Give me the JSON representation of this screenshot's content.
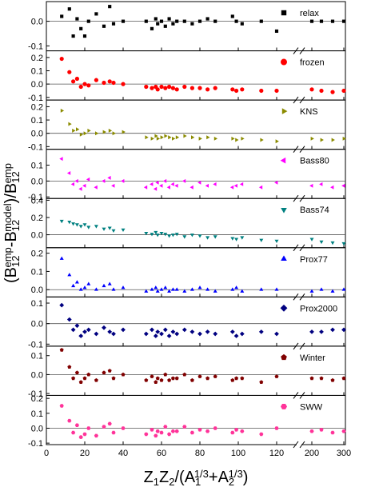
{
  "x_axis": {
    "x": [
      8,
      12,
      14,
      16,
      18,
      20,
      22,
      26,
      30,
      33,
      35,
      40,
      52,
      55,
      57,
      58,
      60,
      62,
      64,
      66,
      68,
      72,
      76,
      80,
      84,
      88,
      97,
      99,
      102,
      112,
      120,
      200,
      230,
      265,
      300
    ],
    "xlim": [
      0,
      305
    ],
    "xbreak": [
      130,
      170
    ],
    "xticks": [
      0,
      20,
      40,
      60,
      80,
      100,
      120,
      200,
      300
    ]
  },
  "xlabel": [
    {
      "t": "Z",
      "pos": "base"
    },
    {
      "t": "1",
      "pos": "sub"
    },
    {
      "t": "Z",
      "pos": "base"
    },
    {
      "t": "2",
      "pos": "sub"
    },
    {
      "t": "/(A",
      "pos": "base"
    },
    {
      "t": "1",
      "pos": "sub"
    },
    {
      "t": "1/3",
      "pos": "sup"
    },
    {
      "t": "+A",
      "pos": "base"
    },
    {
      "t": "2",
      "pos": "sub"
    },
    {
      "t": "1/3",
      "pos": "sup"
    },
    {
      "t": ")",
      "pos": "base"
    }
  ],
  "ylabel": [
    {
      "t": "(B",
      "pos": "base"
    },
    {
      "t": "12",
      "pos": "sub"
    },
    {
      "t": "emp",
      "pos": "sup"
    },
    {
      "t": "-B",
      "pos": "base"
    },
    {
      "t": "12",
      "pos": "sub"
    },
    {
      "t": "model",
      "pos": "sup"
    },
    {
      "t": ")/B",
      "pos": "base"
    },
    {
      "t": "12",
      "pos": "sub"
    },
    {
      "t": "emp",
      "pos": "sup"
    }
  ],
  "chart_data": [
    {
      "type": "scatter",
      "ylim": [
        -0.12,
        0.08
      ],
      "yticks": [
        -0.1,
        {
          "value": 0,
          "label": "0.0"
        }
      ],
      "hline": 0,
      "series": [
        {
          "name": "relax",
          "color": "#000000",
          "marker": "square",
          "values": [
            0.02,
            0.05,
            -0.06,
            0.01,
            -0.03,
            -0.06,
            0.0,
            0.03,
            -0.02,
            0.06,
            -0.01,
            0.0,
            0.0,
            -0.03,
            0.01,
            -0.01,
            0.0,
            -0.02,
            0.01,
            -0.01,
            0.0,
            0.0,
            -0.01,
            0.0,
            0.01,
            0.0,
            0.02,
            0.0,
            -0.01,
            0.0,
            -0.04,
            0.0,
            0.0,
            0.0,
            0.0
          ]
        }
      ]
    },
    {
      "type": "scatter",
      "ylim": [
        -0.12,
        0.25
      ],
      "yticks": [
        -0.1,
        {
          "value": 0,
          "label": "0.0"
        },
        0.1,
        0.2
      ],
      "hline": 0,
      "series": [
        {
          "name": "frozen",
          "color": "#ff0000",
          "marker": "circle",
          "values": [
            0.19,
            0.09,
            0.02,
            0.04,
            -0.02,
            0.0,
            -0.01,
            0.03,
            0.01,
            0.02,
            0.01,
            0.0,
            -0.02,
            -0.03,
            -0.02,
            -0.04,
            -0.02,
            -0.03,
            -0.02,
            -0.03,
            -0.04,
            -0.02,
            -0.03,
            -0.03,
            -0.04,
            -0.03,
            -0.04,
            -0.05,
            -0.04,
            -0.05,
            -0.05,
            -0.04,
            -0.05,
            -0.06,
            -0.05
          ]
        }
      ]
    },
    {
      "type": "scatter",
      "ylim": [
        -0.12,
        0.25
      ],
      "yticks": [
        -0.1,
        {
          "value": 0,
          "label": "0.0"
        },
        0.1,
        0.2
      ],
      "hline": 0,
      "series": [
        {
          "name": "KNS",
          "color": "#8b8b00",
          "marker": "tri-right",
          "values": [
            0.17,
            0.07,
            0.02,
            0.03,
            -0.01,
            0.0,
            0.02,
            0.0,
            0.01,
            0.02,
            0.0,
            0.01,
            -0.03,
            -0.04,
            -0.02,
            -0.04,
            -0.03,
            -0.02,
            -0.03,
            -0.04,
            -0.03,
            -0.02,
            -0.03,
            -0.04,
            -0.03,
            -0.04,
            -0.04,
            -0.05,
            -0.04,
            -0.05,
            -0.06,
            -0.04,
            -0.05,
            -0.05,
            -0.04
          ]
        }
      ]
    },
    {
      "type": "scatter",
      "ylim": [
        -0.11,
        0.2
      ],
      "yticks": [
        -0.1,
        {
          "value": 0,
          "label": "0.0"
        },
        0.1
      ],
      "hline": 0,
      "series": [
        {
          "name": "Bass80",
          "color": "#ff00ff",
          "marker": "tri-left",
          "values": [
            0.14,
            0.05,
            -0.02,
            0.0,
            -0.05,
            -0.03,
            0.01,
            -0.04,
            0.0,
            0.02,
            -0.03,
            0.0,
            -0.04,
            -0.02,
            -0.05,
            -0.01,
            -0.03,
            0.0,
            -0.04,
            -0.02,
            -0.03,
            0.0,
            -0.04,
            -0.01,
            -0.03,
            -0.02,
            -0.04,
            -0.03,
            -0.02,
            -0.04,
            -0.01,
            -0.03,
            -0.02,
            -0.04,
            -0.03
          ]
        }
      ]
    },
    {
      "type": "scatter",
      "ylim": [
        -0.15,
        0.42
      ],
      "yticks": [
        {
          "value": 0,
          "label": "0.0"
        },
        0.2,
        0.4
      ],
      "hline": 0,
      "series": [
        {
          "name": "Bass74",
          "color": "#008080",
          "marker": "tri-down",
          "values": [
            0.16,
            0.15,
            0.13,
            0.12,
            0.1,
            0.12,
            0.09,
            0.1,
            0.07,
            0.08,
            0.05,
            0.06,
            0.02,
            0.01,
            0.03,
            0.0,
            0.02,
            0.01,
            -0.01,
            0.0,
            0.01,
            -0.02,
            0.0,
            -0.01,
            -0.03,
            -0.02,
            -0.04,
            -0.05,
            -0.03,
            -0.06,
            -0.07,
            -0.05,
            -0.08,
            -0.09,
            -0.1
          ]
        }
      ]
    },
    {
      "type": "scatter",
      "ylim": [
        -0.04,
        0.23
      ],
      "yticks": [
        {
          "value": 0,
          "label": "0.0"
        },
        0.1,
        0.2
      ],
      "hline": 0,
      "series": [
        {
          "name": "Prox77",
          "color": "#0000ff",
          "marker": "tri-up",
          "values": [
            0.17,
            0.08,
            0.02,
            0.04,
            0.0,
            0.01,
            0.03,
            0.0,
            0.02,
            0.03,
            0.0,
            0.01,
            -0.01,
            0.0,
            0.01,
            -0.01,
            0.0,
            0.01,
            -0.01,
            0.0,
            0.0,
            -0.01,
            0.0,
            0.01,
            0.0,
            -0.01,
            0.0,
            0.01,
            -0.01,
            0.0,
            0.0,
            -0.01,
            0.0,
            -0.01,
            0.0
          ]
        }
      ]
    },
    {
      "type": "scatter",
      "ylim": [
        -0.11,
        0.13
      ],
      "yticks": [
        -0.1,
        {
          "value": 0,
          "label": "0.0"
        },
        0.1
      ],
      "hline": 0,
      "series": [
        {
          "name": "Prox2000",
          "color": "#000080",
          "marker": "diamond",
          "values": [
            0.09,
            0.02,
            -0.03,
            -0.01,
            -0.06,
            -0.04,
            -0.03,
            -0.05,
            -0.02,
            -0.04,
            -0.05,
            -0.03,
            -0.05,
            -0.03,
            -0.06,
            -0.04,
            -0.05,
            -0.03,
            -0.06,
            -0.04,
            -0.05,
            -0.03,
            -0.04,
            -0.05,
            -0.04,
            -0.05,
            -0.04,
            -0.06,
            -0.05,
            -0.04,
            -0.05,
            -0.04,
            -0.04,
            -0.03,
            -0.03
          ]
        }
      ]
    },
    {
      "type": "scatter",
      "ylim": [
        -0.11,
        0.15
      ],
      "yticks": [
        -0.1,
        {
          "value": 0,
          "label": "0.0"
        },
        0.1
      ],
      "hline": 0,
      "series": [
        {
          "name": "Winter",
          "color": "#800000",
          "marker": "pentagon",
          "values": [
            0.13,
            0.04,
            -0.02,
            0.01,
            -0.04,
            -0.02,
            0.0,
            -0.03,
            0.01,
            0.02,
            -0.02,
            0.0,
            -0.03,
            -0.01,
            -0.04,
            -0.02,
            -0.03,
            0.0,
            -0.03,
            -0.02,
            -0.02,
            0.0,
            -0.03,
            -0.01,
            -0.02,
            -0.01,
            -0.03,
            -0.02,
            -0.02,
            -0.04,
            -0.01,
            -0.02,
            -0.02,
            -0.03,
            -0.02
          ]
        }
      ]
    },
    {
      "type": "scatter",
      "ylim": [
        -0.11,
        0.22
      ],
      "yticks": [
        -0.1,
        {
          "value": 0,
          "label": "0.0"
        },
        0.1,
        0.2
      ],
      "hline": 0,
      "series": [
        {
          "name": "SWW",
          "color": "#ff3399",
          "marker": "hexagon",
          "values": [
            0.15,
            0.05,
            -0.03,
            0.02,
            -0.06,
            -0.04,
            0.0,
            -0.05,
            0.01,
            0.03,
            -0.03,
            0.0,
            -0.04,
            -0.01,
            -0.05,
            -0.02,
            -0.03,
            0.01,
            -0.04,
            -0.02,
            -0.02,
            0.01,
            -0.03,
            -0.01,
            -0.02,
            0.0,
            -0.03,
            -0.01,
            -0.02,
            -0.04,
            0.0,
            -0.02,
            -0.01,
            -0.03,
            -0.02
          ]
        }
      ]
    }
  ]
}
